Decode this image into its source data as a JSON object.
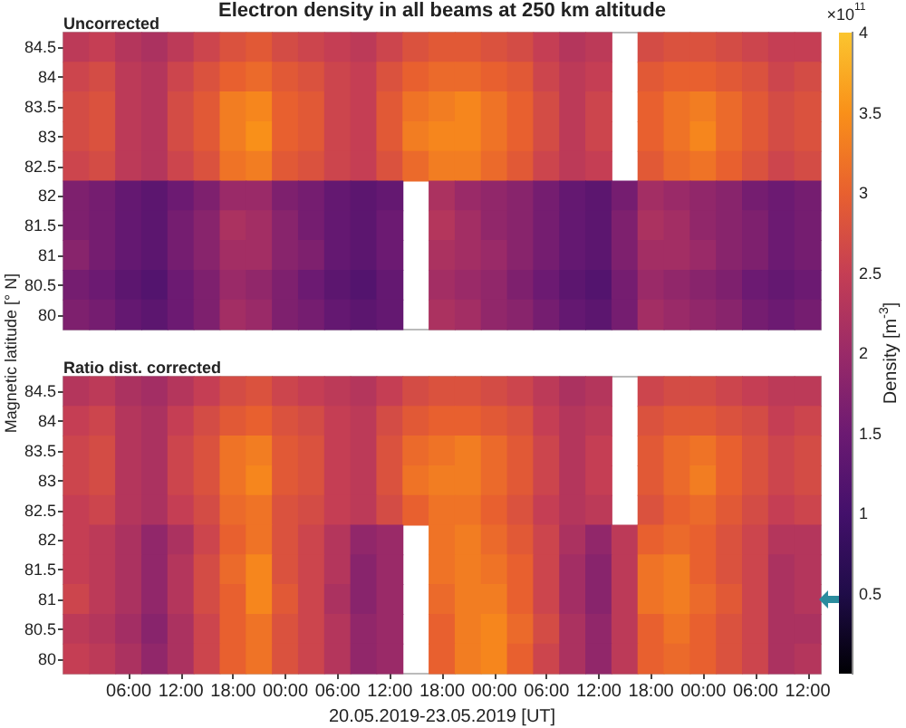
{
  "chart_data": [
    {
      "type": "heatmap",
      "title": "Electron density in all beams at 250 km altitude",
      "subtitle": "Uncorrected",
      "ylabel": "Magnetic latitude [° N]",
      "clabel": "Density [m$^{-3}$]",
      "annotations": [
        "×10$^{11}$"
      ],
      "tick_labels": "y",
      "clim": [
        0,
        4
      ],
      "cticks": [
        2.5,
        3,
        3.5,
        4
      ],
      "categories": [
        null,
        null,
        null,
        null,
        null,
        null,
        null,
        null,
        null,
        null,
        null,
        null,
        null,
        null,
        null,
        null,
        null,
        null,
        null,
        null,
        null,
        null,
        null,
        null,
        null,
        null,
        null,
        null,
        null
      ],
      "y_categories": [
        "84.5",
        "84",
        "83.5",
        "83",
        "82.5",
        "82",
        "81.5",
        "81",
        "80.5",
        "80"
      ],
      "cells": [
        [
          2.4,
          2.5,
          2.3,
          2.2,
          2.4,
          2.6,
          2.8,
          2.9,
          2.7,
          2.6,
          2.5,
          2.4,
          2.6,
          2.8,
          2.9,
          2.9,
          2.8,
          2.7,
          2.5,
          2.3,
          2.4,
          null,
          2.7,
          2.8,
          2.8,
          2.7,
          2.6,
          2.5,
          2.5
        ],
        [
          2.6,
          2.7,
          2.4,
          2.3,
          2.6,
          2.8,
          3.0,
          3.1,
          2.9,
          2.8,
          2.6,
          2.5,
          2.8,
          3.0,
          3.1,
          3.1,
          3.0,
          2.9,
          2.6,
          2.4,
          2.5,
          null,
          2.9,
          3.0,
          3.0,
          2.9,
          2.8,
          2.6,
          2.7
        ],
        [
          2.7,
          2.8,
          2.4,
          2.3,
          2.7,
          2.9,
          3.3,
          3.4,
          3.0,
          2.9,
          2.6,
          2.5,
          2.9,
          3.2,
          3.3,
          3.4,
          3.2,
          3.0,
          2.7,
          2.4,
          2.6,
          null,
          3.0,
          3.2,
          3.3,
          3.1,
          2.9,
          2.7,
          2.8
        ],
        [
          2.7,
          2.8,
          2.4,
          2.3,
          2.7,
          2.9,
          3.3,
          3.5,
          3.0,
          2.9,
          2.6,
          2.5,
          2.9,
          3.3,
          3.4,
          3.4,
          3.2,
          3.0,
          2.7,
          2.4,
          2.6,
          null,
          3.0,
          3.2,
          3.4,
          3.1,
          2.9,
          2.7,
          2.8
        ],
        [
          2.6,
          2.7,
          2.4,
          2.3,
          2.6,
          2.8,
          3.2,
          3.3,
          2.9,
          2.8,
          2.6,
          2.5,
          2.8,
          3.1,
          3.3,
          3.3,
          3.1,
          2.9,
          2.6,
          2.4,
          2.5,
          null,
          2.9,
          3.1,
          3.2,
          3.0,
          2.8,
          2.6,
          2.7
        ],
        [
          1.7,
          1.6,
          1.4,
          1.3,
          1.5,
          1.7,
          2.0,
          2.0,
          1.7,
          1.6,
          1.4,
          1.3,
          1.4,
          null,
          2.2,
          2.0,
          1.9,
          1.8,
          1.6,
          1.4,
          1.3,
          1.6,
          2.1,
          2.0,
          1.9,
          1.8,
          1.6,
          1.5,
          1.6
        ],
        [
          1.7,
          1.6,
          1.4,
          1.3,
          1.6,
          1.8,
          2.2,
          2.1,
          1.8,
          1.6,
          1.4,
          1.3,
          1.5,
          null,
          2.3,
          2.1,
          1.9,
          1.8,
          1.6,
          1.4,
          1.3,
          1.7,
          2.2,
          2.1,
          1.9,
          1.8,
          1.7,
          1.5,
          1.6
        ],
        [
          1.8,
          1.6,
          1.4,
          1.3,
          1.6,
          1.8,
          2.1,
          2.1,
          1.8,
          1.7,
          1.4,
          1.3,
          1.5,
          null,
          2.2,
          2.1,
          2.0,
          1.8,
          1.6,
          1.4,
          1.3,
          1.7,
          2.1,
          2.1,
          2.0,
          1.8,
          1.7,
          1.5,
          1.6
        ],
        [
          1.6,
          1.5,
          1.3,
          1.2,
          1.5,
          1.7,
          2.0,
          1.9,
          1.7,
          1.5,
          1.3,
          1.2,
          1.4,
          null,
          2.1,
          2.0,
          1.9,
          1.7,
          1.5,
          1.3,
          1.2,
          1.6,
          2.0,
          1.9,
          1.8,
          1.7,
          1.5,
          1.4,
          1.5
        ],
        [
          1.7,
          1.6,
          1.4,
          1.3,
          1.5,
          1.7,
          2.1,
          2.0,
          1.7,
          1.6,
          1.4,
          1.3,
          1.4,
          null,
          2.2,
          2.1,
          1.9,
          1.8,
          1.6,
          1.4,
          1.3,
          1.6,
          2.1,
          2.0,
          1.9,
          1.8,
          1.6,
          1.5,
          1.6
        ]
      ]
    },
    {
      "type": "heatmap",
      "title": "Ratio dist. corrected",
      "xlabel": "20.05.2019-23.05.2019 [UT]",
      "clim": [
        0,
        4
      ],
      "cticks": [
        0.5,
        1,
        1.5,
        2
      ],
      "categories": [
        null,
        null,
        "06:00",
        null,
        "12:00",
        null,
        "18:00",
        null,
        "00:00",
        null,
        "06:00",
        null,
        "12:00",
        null,
        "18:00",
        null,
        "00:00",
        null,
        "06:00",
        null,
        "12:00",
        null,
        "18:00",
        null,
        "00:00",
        null,
        "06:00",
        null,
        "12:00"
      ],
      "y_categories": [
        "84.5",
        "84",
        "83.5",
        "83",
        "82.5",
        "82",
        "81.5",
        "81",
        "80.5",
        "80"
      ],
      "cells": [
        [
          2.3,
          2.4,
          2.2,
          2.1,
          2.3,
          2.5,
          2.7,
          2.8,
          2.6,
          2.5,
          2.4,
          2.3,
          2.5,
          2.7,
          2.8,
          2.8,
          2.7,
          2.6,
          2.4,
          2.2,
          2.3,
          null,
          2.6,
          2.7,
          2.7,
          2.6,
          2.5,
          2.4,
          2.4
        ],
        [
          2.5,
          2.6,
          2.3,
          2.2,
          2.5,
          2.7,
          2.9,
          3.0,
          2.8,
          2.7,
          2.5,
          2.4,
          2.7,
          2.9,
          3.0,
          3.0,
          2.9,
          2.8,
          2.5,
          2.3,
          2.4,
          null,
          2.8,
          2.9,
          2.9,
          2.8,
          2.7,
          2.5,
          2.6
        ],
        [
          2.6,
          2.7,
          2.3,
          2.2,
          2.6,
          2.8,
          3.2,
          3.3,
          2.9,
          2.8,
          2.5,
          2.4,
          2.8,
          3.1,
          3.2,
          3.3,
          3.1,
          2.9,
          2.6,
          2.3,
          2.5,
          null,
          2.9,
          3.1,
          3.2,
          3.0,
          2.8,
          2.6,
          2.7
        ],
        [
          2.6,
          2.7,
          2.3,
          2.2,
          2.6,
          2.8,
          3.2,
          3.4,
          2.9,
          2.8,
          2.5,
          2.4,
          2.8,
          3.2,
          3.3,
          3.3,
          3.1,
          2.9,
          2.6,
          2.3,
          2.5,
          null,
          2.9,
          3.1,
          3.3,
          3.0,
          2.8,
          2.6,
          2.7
        ],
        [
          2.5,
          2.6,
          2.3,
          2.2,
          2.5,
          2.7,
          3.1,
          3.2,
          2.8,
          2.7,
          2.5,
          2.4,
          2.7,
          3.0,
          3.2,
          3.2,
          3.0,
          2.8,
          2.5,
          2.3,
          2.4,
          null,
          2.8,
          3.0,
          3.1,
          2.9,
          2.7,
          2.5,
          2.6
        ],
        [
          2.5,
          2.4,
          2.2,
          1.9,
          2.2,
          2.6,
          3.0,
          3.2,
          2.8,
          2.6,
          2.3,
          1.9,
          2.0,
          null,
          3.2,
          3.3,
          3.1,
          2.9,
          2.6,
          2.2,
          1.9,
          2.4,
          3.0,
          3.1,
          3.0,
          2.8,
          2.6,
          2.3,
          2.3
        ],
        [
          2.5,
          2.4,
          2.2,
          1.9,
          2.3,
          2.7,
          3.1,
          3.4,
          2.8,
          2.6,
          2.3,
          1.8,
          2.0,
          null,
          3.2,
          3.3,
          3.2,
          3.0,
          2.6,
          2.1,
          1.8,
          2.4,
          3.2,
          3.3,
          3.0,
          2.8,
          2.6,
          2.2,
          2.3
        ],
        [
          2.6,
          2.4,
          2.2,
          1.9,
          2.3,
          2.7,
          3.0,
          3.4,
          2.9,
          2.6,
          2.2,
          1.8,
          2.0,
          null,
          3.1,
          3.3,
          3.3,
          3.0,
          2.6,
          2.1,
          1.8,
          2.4,
          3.2,
          3.3,
          3.1,
          2.9,
          2.6,
          2.2,
          2.3
        ],
        [
          2.4,
          2.3,
          2.1,
          1.8,
          2.2,
          2.6,
          3.0,
          3.2,
          2.8,
          2.6,
          2.3,
          1.9,
          2.0,
          null,
          3.0,
          3.3,
          3.4,
          3.1,
          2.7,
          2.2,
          1.9,
          2.4,
          3.0,
          3.2,
          3.0,
          2.8,
          2.6,
          2.2,
          2.2
        ],
        [
          2.5,
          2.4,
          2.2,
          1.9,
          2.2,
          2.6,
          3.0,
          3.2,
          2.8,
          2.6,
          2.3,
          1.9,
          2.0,
          null,
          3.0,
          3.3,
          3.4,
          3.0,
          2.6,
          2.2,
          1.9,
          2.4,
          3.0,
          3.1,
          3.0,
          2.8,
          2.6,
          2.2,
          2.3
        ]
      ]
    }
  ]
}
